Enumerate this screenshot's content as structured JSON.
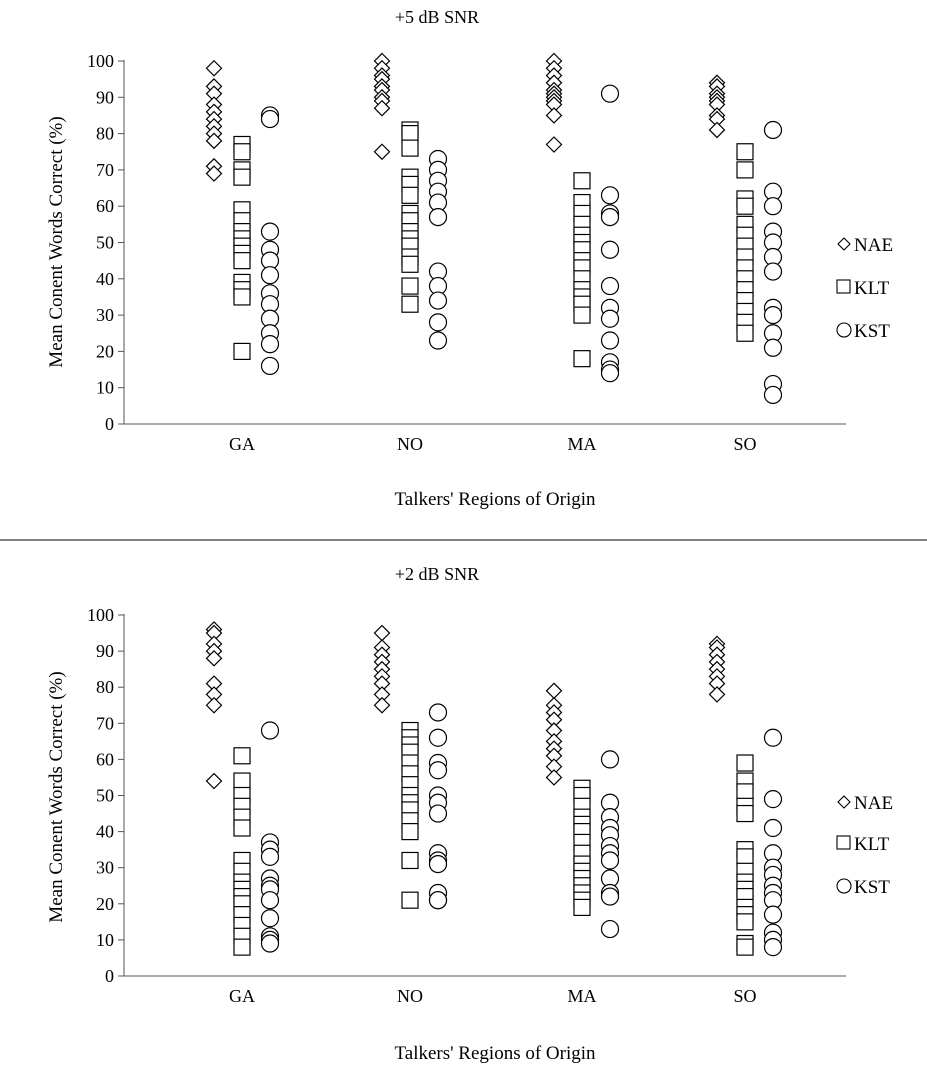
{
  "chart_data": [
    {
      "type": "scatter",
      "title": "+5 dB SNR",
      "xlabel": "Talkers' Regions of Origin",
      "ylabel": "Mean Conent Words Correct (%)",
      "categories": [
        "GA",
        "NO",
        "MA",
        "SO"
      ],
      "ylim": [
        0,
        100
      ],
      "yticks": [
        0,
        10,
        20,
        30,
        40,
        50,
        60,
        70,
        80,
        90,
        100
      ],
      "grid": false,
      "legend_position": "right",
      "series": [
        {
          "name": "NAE",
          "marker": "diamond",
          "values": [
            [
              98,
              93,
              91,
              88,
              86,
              84,
              82,
              80,
              78,
              71,
              69
            ],
            [
              100,
              98,
              96,
              95,
              93,
              92,
              90,
              89,
              87,
              75
            ],
            [
              100,
              98,
              96,
              94,
              92,
              91,
              90,
              89,
              88,
              85,
              77
            ],
            [
              94,
              93,
              91,
              90,
              89,
              88,
              85,
              84,
              81
            ]
          ]
        },
        {
          "name": "KLT",
          "marker": "square",
          "values": [
            [
              77,
              75,
              70,
              68,
              59,
              56,
              53,
              51,
              49,
              47,
              45,
              39,
              37,
              35,
              20
            ],
            [
              81,
              80,
              76,
              68,
              66,
              63,
              58,
              56,
              53,
              51,
              49,
              46,
              44,
              38,
              33
            ],
            [
              67,
              61,
              58,
              55,
              52,
              50,
              48,
              45,
              43,
              40,
              37,
              35,
              33,
              30,
              18
            ],
            [
              75,
              70,
              62,
              60,
              55,
              52,
              49,
              46,
              43,
              40,
              37,
              34,
              31,
              28,
              25
            ]
          ]
        },
        {
          "name": "KST",
          "marker": "circle",
          "values": [
            [
              85,
              84,
              53,
              48,
              45,
              41,
              36,
              33,
              29,
              25,
              22,
              16
            ],
            [
              73,
              70,
              67,
              64,
              61,
              57,
              42,
              38,
              34,
              28,
              23
            ],
            [
              91,
              63,
              58,
              57,
              48,
              38,
              32,
              29,
              23,
              17,
              15,
              14
            ],
            [
              81,
              64,
              60,
              53,
              50,
              46,
              42,
              32,
              30,
              25,
              21,
              11,
              8
            ]
          ]
        }
      ]
    },
    {
      "type": "scatter",
      "title": "+2 dB SNR",
      "xlabel": "Talkers' Regions of Origin",
      "ylabel": "Mean Conent Words Correct (%)",
      "categories": [
        "GA",
        "NO",
        "MA",
        "SO"
      ],
      "ylim": [
        0,
        100
      ],
      "yticks": [
        0,
        10,
        20,
        30,
        40,
        50,
        60,
        70,
        80,
        90,
        100
      ],
      "grid": false,
      "legend_position": "right",
      "series": [
        {
          "name": "NAE",
          "marker": "diamond",
          "values": [
            [
              96,
              95,
              92,
              90,
              88,
              81,
              78,
              75,
              54
            ],
            [
              95,
              91,
              89,
              87,
              85,
              83,
              81,
              78,
              75
            ],
            [
              79,
              75,
              73,
              71,
              68,
              65,
              63,
              61,
              58,
              55
            ],
            [
              92,
              91,
              89,
              87,
              85,
              83,
              81,
              78
            ]
          ]
        },
        {
          "name": "KLT",
          "marker": "square",
          "values": [
            [
              61,
              54,
              50,
              47,
              44,
              41,
              32,
              29,
              26,
              24,
              22,
              20,
              17,
              14,
              11,
              8
            ],
            [
              68,
              66,
              64,
              62,
              59,
              56,
              53,
              50,
              48,
              46,
              43,
              40,
              32,
              21
            ],
            [
              52,
              50,
              47,
              44,
              42,
              40,
              37,
              34,
              31,
              29,
              27,
              25,
              23,
              21,
              19
            ],
            [
              59,
              54,
              51,
              47,
              45,
              35,
              33,
              29,
              26,
              24,
              22,
              19,
              17,
              15,
              9,
              8
            ]
          ]
        },
        {
          "name": "KST",
          "marker": "circle",
          "values": [
            [
              68,
              37,
              35,
              33,
              27,
              25,
              24,
              21,
              16,
              11,
              10,
              9
            ],
            [
              73,
              66,
              59,
              57,
              50,
              48,
              45,
              34,
              32,
              31,
              23,
              21,
              21
            ],
            [
              60,
              48,
              44,
              41,
              39,
              36,
              34,
              32,
              27,
              23,
              22,
              13
            ],
            [
              66,
              49,
              41,
              34,
              30,
              28,
              25,
              23,
              21,
              17,
              12,
              10,
              8
            ]
          ]
        }
      ]
    }
  ]
}
